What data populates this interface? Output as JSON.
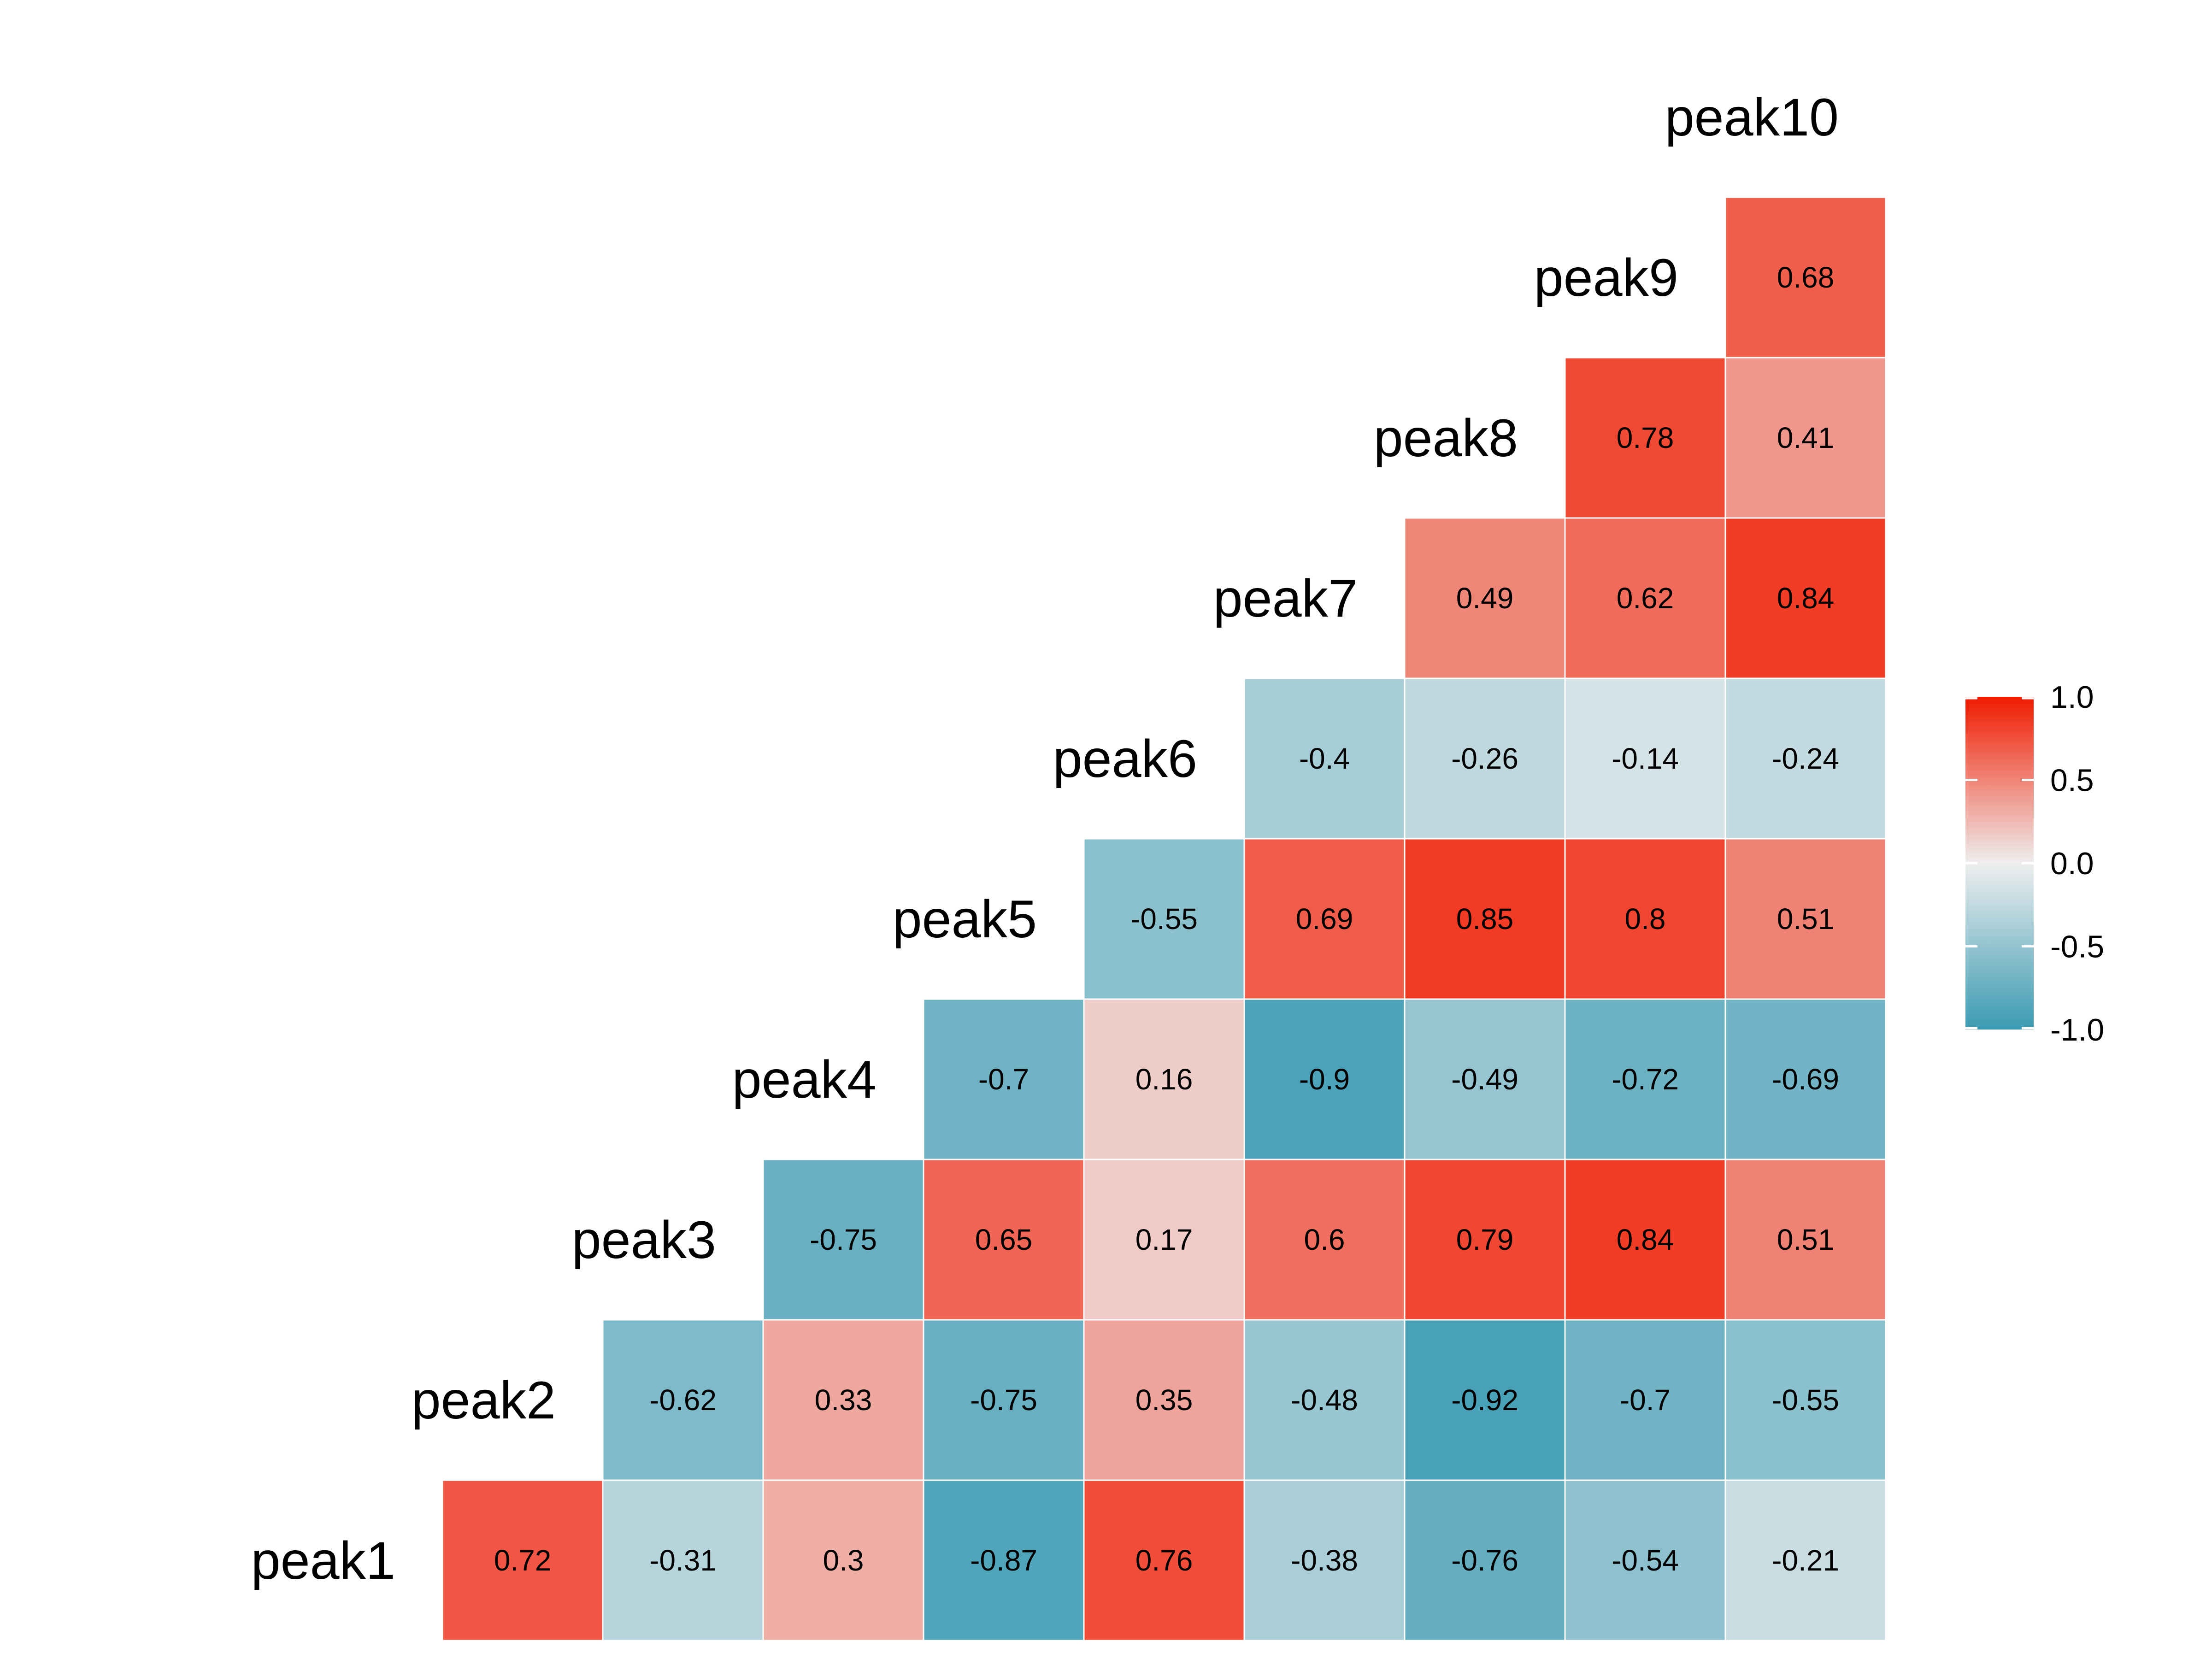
{
  "chart_data": {
    "type": "heatmap",
    "title": "",
    "xlabel": "",
    "ylabel": "",
    "variables": [
      "peak1",
      "peak2",
      "peak3",
      "peak4",
      "peak5",
      "peak6",
      "peak7",
      "peak8",
      "peak9",
      "peak10"
    ],
    "rows": [
      {
        "label": "peak1",
        "values": [
          0.72,
          -0.31,
          0.3,
          -0.87,
          0.76,
          -0.38,
          -0.76,
          -0.54,
          -0.21
        ]
      },
      {
        "label": "peak2",
        "values": [
          -0.62,
          0.33,
          -0.75,
          0.35,
          -0.48,
          -0.92,
          -0.7,
          -0.55
        ]
      },
      {
        "label": "peak3",
        "values": [
          -0.75,
          0.65,
          0.17,
          0.6,
          0.79,
          0.84,
          0.51
        ]
      },
      {
        "label": "peak4",
        "values": [
          -0.7,
          0.16,
          -0.9,
          -0.49,
          -0.72,
          -0.69
        ]
      },
      {
        "label": "peak5",
        "values": [
          -0.55,
          0.69,
          0.85,
          0.8,
          0.51
        ]
      },
      {
        "label": "peak6",
        "values": [
          -0.4,
          -0.26,
          -0.14,
          -0.24
        ]
      },
      {
        "label": "peak7",
        "values": [
          0.49,
          0.62,
          0.84
        ]
      },
      {
        "label": "peak8",
        "values": [
          0.78,
          0.41
        ]
      },
      {
        "label": "peak9",
        "values": [
          0.68
        ]
      },
      {
        "label": "peak10",
        "values": []
      }
    ],
    "color_scale": {
      "low": "#3A9AB2",
      "mid": "#EEEEEE",
      "high": "#F11B00",
      "limits": [
        -1.0,
        1.0
      ]
    },
    "legend": {
      "position": "right",
      "ticks": [
        "1.0",
        "0.5",
        "0.0",
        "-0.5",
        "-1.0"
      ]
    },
    "grid": false
  }
}
